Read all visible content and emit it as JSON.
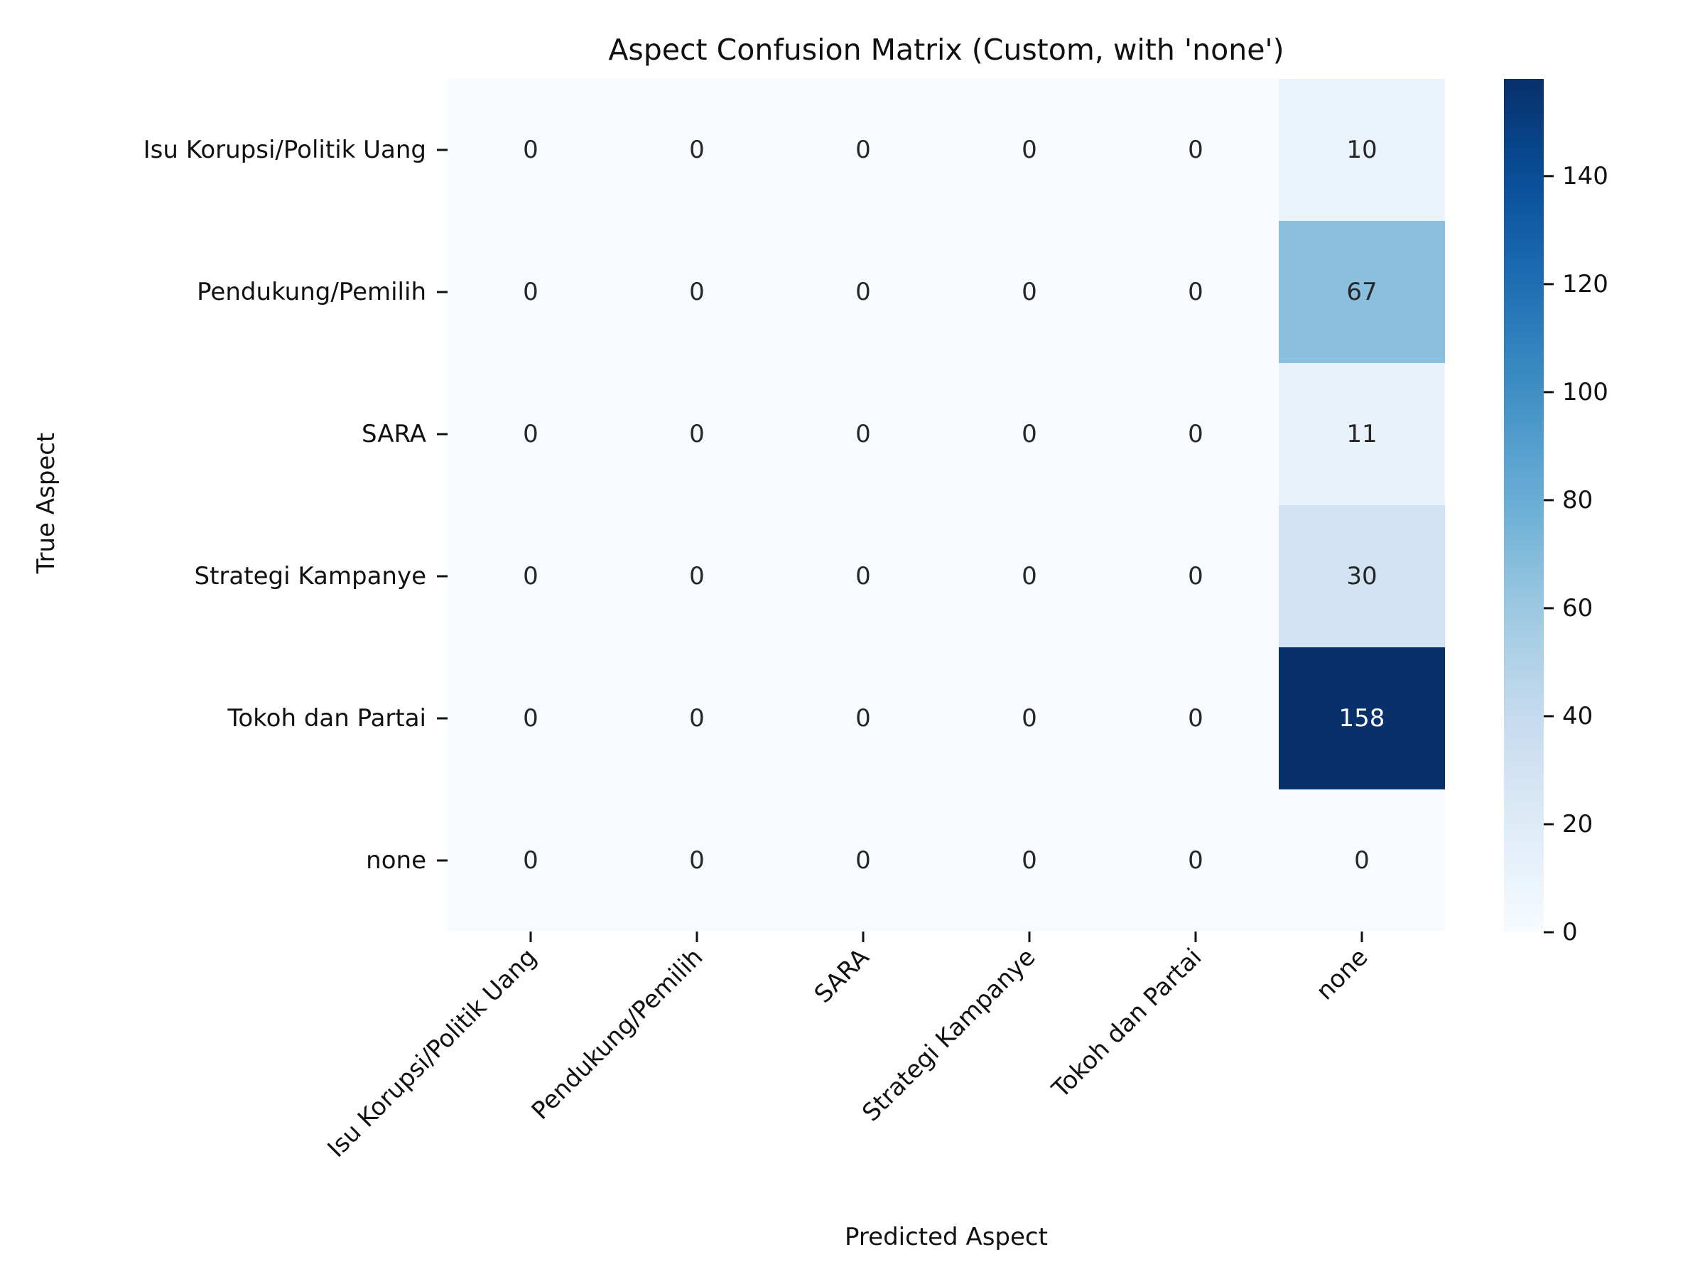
{
  "chart_data": {
    "type": "heatmap",
    "title": "Aspect Confusion Matrix (Custom, with 'none')",
    "xlabel": "Predicted Aspect",
    "ylabel": "True Aspect",
    "x_categories": [
      "Isu Korupsi/Politik Uang",
      "Pendukung/Pemilih",
      "SARA",
      "Strategi Kampanye",
      "Tokoh dan Partai",
      "none"
    ],
    "y_categories": [
      "Isu Korupsi/Politik Uang",
      "Pendukung/Pemilih",
      "SARA",
      "Strategi Kampanye",
      "Tokoh dan Partai",
      "none"
    ],
    "values": [
      [
        0,
        0,
        0,
        0,
        0,
        10
      ],
      [
        0,
        0,
        0,
        0,
        0,
        67
      ],
      [
        0,
        0,
        0,
        0,
        0,
        11
      ],
      [
        0,
        0,
        0,
        0,
        0,
        30
      ],
      [
        0,
        0,
        0,
        0,
        0,
        158
      ],
      [
        0,
        0,
        0,
        0,
        0,
        0
      ]
    ],
    "colormap": "Blues",
    "color_low": "#f7fbff",
    "color_high": "#08306b",
    "colorbar": {
      "range": [
        0,
        158
      ],
      "ticks": [
        0,
        20,
        40,
        60,
        80,
        100,
        120,
        140
      ]
    },
    "annotations": true
  }
}
